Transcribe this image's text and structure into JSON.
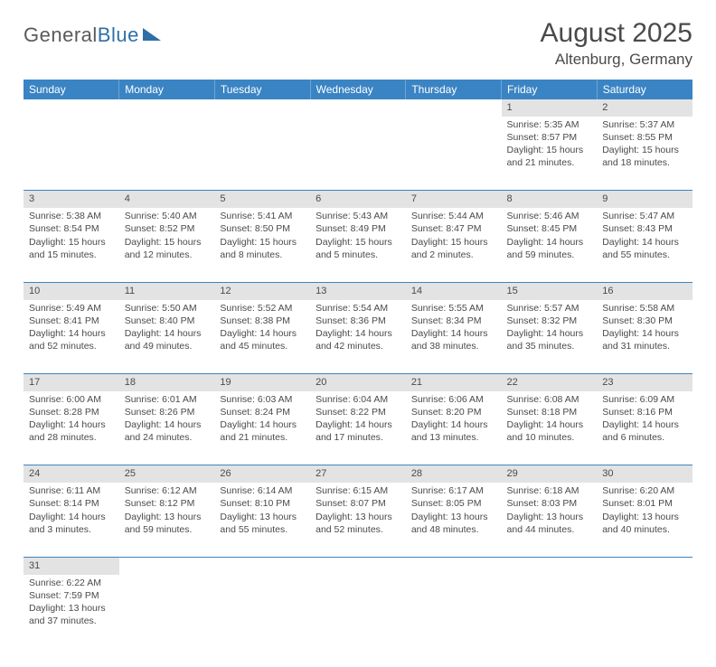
{
  "logo": {
    "text1": "General",
    "text2": "Blue"
  },
  "title": "August 2025",
  "location": "Altenburg, Germany",
  "colors": {
    "header_bg": "#3b84c4",
    "header_text": "#ffffff",
    "daynum_bg": "#e3e3e3",
    "divider": "#3b84c4",
    "text": "#4a4a4a",
    "page_bg": "#ffffff"
  },
  "daynames": [
    "Sunday",
    "Monday",
    "Tuesday",
    "Wednesday",
    "Thursday",
    "Friday",
    "Saturday"
  ],
  "weeks": [
    [
      null,
      null,
      null,
      null,
      null,
      {
        "n": "1",
        "sunrise": "Sunrise: 5:35 AM",
        "sunset": "Sunset: 8:57 PM",
        "daylight": "Daylight: 15 hours and 21 minutes."
      },
      {
        "n": "2",
        "sunrise": "Sunrise: 5:37 AM",
        "sunset": "Sunset: 8:55 PM",
        "daylight": "Daylight: 15 hours and 18 minutes."
      }
    ],
    [
      {
        "n": "3",
        "sunrise": "Sunrise: 5:38 AM",
        "sunset": "Sunset: 8:54 PM",
        "daylight": "Daylight: 15 hours and 15 minutes."
      },
      {
        "n": "4",
        "sunrise": "Sunrise: 5:40 AM",
        "sunset": "Sunset: 8:52 PM",
        "daylight": "Daylight: 15 hours and 12 minutes."
      },
      {
        "n": "5",
        "sunrise": "Sunrise: 5:41 AM",
        "sunset": "Sunset: 8:50 PM",
        "daylight": "Daylight: 15 hours and 8 minutes."
      },
      {
        "n": "6",
        "sunrise": "Sunrise: 5:43 AM",
        "sunset": "Sunset: 8:49 PM",
        "daylight": "Daylight: 15 hours and 5 minutes."
      },
      {
        "n": "7",
        "sunrise": "Sunrise: 5:44 AM",
        "sunset": "Sunset: 8:47 PM",
        "daylight": "Daylight: 15 hours and 2 minutes."
      },
      {
        "n": "8",
        "sunrise": "Sunrise: 5:46 AM",
        "sunset": "Sunset: 8:45 PM",
        "daylight": "Daylight: 14 hours and 59 minutes."
      },
      {
        "n": "9",
        "sunrise": "Sunrise: 5:47 AM",
        "sunset": "Sunset: 8:43 PM",
        "daylight": "Daylight: 14 hours and 55 minutes."
      }
    ],
    [
      {
        "n": "10",
        "sunrise": "Sunrise: 5:49 AM",
        "sunset": "Sunset: 8:41 PM",
        "daylight": "Daylight: 14 hours and 52 minutes."
      },
      {
        "n": "11",
        "sunrise": "Sunrise: 5:50 AM",
        "sunset": "Sunset: 8:40 PM",
        "daylight": "Daylight: 14 hours and 49 minutes."
      },
      {
        "n": "12",
        "sunrise": "Sunrise: 5:52 AM",
        "sunset": "Sunset: 8:38 PM",
        "daylight": "Daylight: 14 hours and 45 minutes."
      },
      {
        "n": "13",
        "sunrise": "Sunrise: 5:54 AM",
        "sunset": "Sunset: 8:36 PM",
        "daylight": "Daylight: 14 hours and 42 minutes."
      },
      {
        "n": "14",
        "sunrise": "Sunrise: 5:55 AM",
        "sunset": "Sunset: 8:34 PM",
        "daylight": "Daylight: 14 hours and 38 minutes."
      },
      {
        "n": "15",
        "sunrise": "Sunrise: 5:57 AM",
        "sunset": "Sunset: 8:32 PM",
        "daylight": "Daylight: 14 hours and 35 minutes."
      },
      {
        "n": "16",
        "sunrise": "Sunrise: 5:58 AM",
        "sunset": "Sunset: 8:30 PM",
        "daylight": "Daylight: 14 hours and 31 minutes."
      }
    ],
    [
      {
        "n": "17",
        "sunrise": "Sunrise: 6:00 AM",
        "sunset": "Sunset: 8:28 PM",
        "daylight": "Daylight: 14 hours and 28 minutes."
      },
      {
        "n": "18",
        "sunrise": "Sunrise: 6:01 AM",
        "sunset": "Sunset: 8:26 PM",
        "daylight": "Daylight: 14 hours and 24 minutes."
      },
      {
        "n": "19",
        "sunrise": "Sunrise: 6:03 AM",
        "sunset": "Sunset: 8:24 PM",
        "daylight": "Daylight: 14 hours and 21 minutes."
      },
      {
        "n": "20",
        "sunrise": "Sunrise: 6:04 AM",
        "sunset": "Sunset: 8:22 PM",
        "daylight": "Daylight: 14 hours and 17 minutes."
      },
      {
        "n": "21",
        "sunrise": "Sunrise: 6:06 AM",
        "sunset": "Sunset: 8:20 PM",
        "daylight": "Daylight: 14 hours and 13 minutes."
      },
      {
        "n": "22",
        "sunrise": "Sunrise: 6:08 AM",
        "sunset": "Sunset: 8:18 PM",
        "daylight": "Daylight: 14 hours and 10 minutes."
      },
      {
        "n": "23",
        "sunrise": "Sunrise: 6:09 AM",
        "sunset": "Sunset: 8:16 PM",
        "daylight": "Daylight: 14 hours and 6 minutes."
      }
    ],
    [
      {
        "n": "24",
        "sunrise": "Sunrise: 6:11 AM",
        "sunset": "Sunset: 8:14 PM",
        "daylight": "Daylight: 14 hours and 3 minutes."
      },
      {
        "n": "25",
        "sunrise": "Sunrise: 6:12 AM",
        "sunset": "Sunset: 8:12 PM",
        "daylight": "Daylight: 13 hours and 59 minutes."
      },
      {
        "n": "26",
        "sunrise": "Sunrise: 6:14 AM",
        "sunset": "Sunset: 8:10 PM",
        "daylight": "Daylight: 13 hours and 55 minutes."
      },
      {
        "n": "27",
        "sunrise": "Sunrise: 6:15 AM",
        "sunset": "Sunset: 8:07 PM",
        "daylight": "Daylight: 13 hours and 52 minutes."
      },
      {
        "n": "28",
        "sunrise": "Sunrise: 6:17 AM",
        "sunset": "Sunset: 8:05 PM",
        "daylight": "Daylight: 13 hours and 48 minutes."
      },
      {
        "n": "29",
        "sunrise": "Sunrise: 6:18 AM",
        "sunset": "Sunset: 8:03 PM",
        "daylight": "Daylight: 13 hours and 44 minutes."
      },
      {
        "n": "30",
        "sunrise": "Sunrise: 6:20 AM",
        "sunset": "Sunset: 8:01 PM",
        "daylight": "Daylight: 13 hours and 40 minutes."
      }
    ],
    [
      {
        "n": "31",
        "sunrise": "Sunrise: 6:22 AM",
        "sunset": "Sunset: 7:59 PM",
        "daylight": "Daylight: 13 hours and 37 minutes."
      },
      null,
      null,
      null,
      null,
      null,
      null
    ]
  ]
}
